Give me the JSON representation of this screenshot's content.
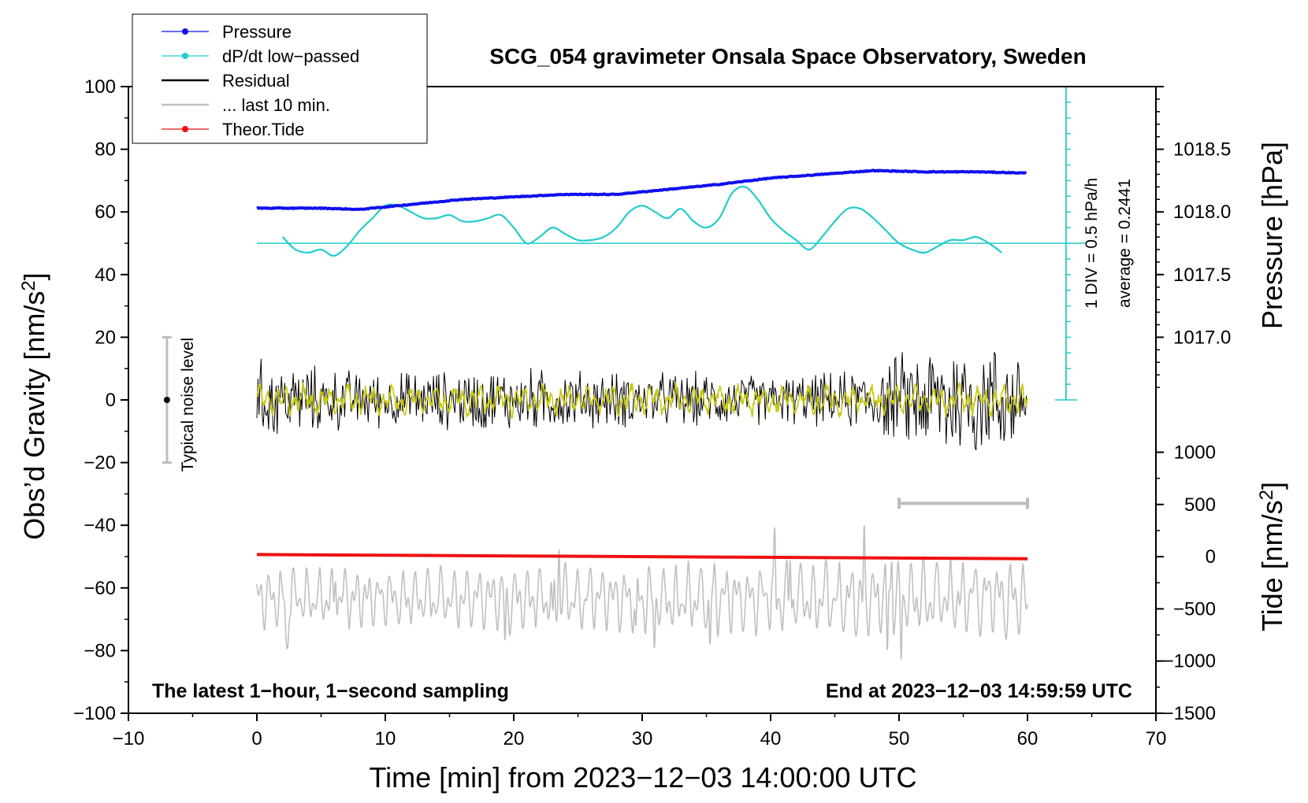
{
  "chart_data": {
    "type": "line",
    "title": "SCG_054 gravimeter Onsala Space Observatory, Sweden",
    "xlabel": "Time [min] from 2023−12−03 14:00:00 UTC",
    "ylabel_left_main": "Obs’d Gravity [nm/s",
    "ylabel_left_sup": "2",
    "ylabel_left_end": "]",
    "ylabel_right_top": "Pressure [hPa]",
    "ylabel_right_bottom_main": "Tide [nm/s",
    "ylabel_right_bottom_sup": "2",
    "ylabel_right_bottom_end": "]",
    "xlim": [
      -10,
      70
    ],
    "ylim": [
      -100,
      100
    ],
    "x_ticks": [
      -10,
      0,
      10,
      20,
      30,
      40,
      50,
      60,
      70
    ],
    "x_tick_labels": [
      "−10",
      "0",
      "10",
      "20",
      "30",
      "40",
      "50",
      "60",
      "70"
    ],
    "y_ticks": [
      -100,
      -80,
      -60,
      -40,
      -20,
      0,
      20,
      40,
      60,
      80,
      100
    ],
    "y_tick_labels": [
      "−100",
      "−80",
      "−60",
      "−40",
      "−20",
      "0",
      "20",
      "40",
      "60",
      "80",
      "100"
    ],
    "pressure_ticks": [
      1017.0,
      1017.5,
      1018.0,
      1018.5
    ],
    "pressure_tick_labels": [
      "1017.0",
      "1017.5",
      "1018.0",
      "1018.5"
    ],
    "pressure_axis_map": [
      [
        1017.0,
        20
      ],
      [
        1018.5,
        80
      ]
    ],
    "tide_ticks": [
      -1500,
      -1000,
      -500,
      0,
      500,
      1000
    ],
    "tide_tick_labels": [
      "−1500",
      "−1000",
      "−500",
      "0",
      "500",
      "1000"
    ],
    "tide_axis_map": [
      [
        -1500,
        -100
      ],
      [
        1000,
        -16.7
      ]
    ],
    "legend": [
      {
        "label": "Pressure",
        "color": "#1010ee",
        "style": "line-dot"
      },
      {
        "label": "dP/dt low−passed",
        "color": "#22cccc",
        "style": "line-dot"
      },
      {
        "label": "Residual",
        "color": "#000000",
        "style": "line"
      },
      {
        "label": "... last 10 min.",
        "color": "#c0c0c0",
        "style": "line"
      },
      {
        "label": "Theor.Tide",
        "color": "#ee1111",
        "style": "line-dot"
      }
    ],
    "legend_position": "top-left",
    "annotations": {
      "bottom_left": "The latest 1−hour, 1−second sampling",
      "bottom_right": "End at 2023−12−03 14:59:59 UTC",
      "noise_label": "Typical noise level",
      "div_label": "1 DIV = 0.5 hPa/h",
      "average_label": "average = 0.2441"
    },
    "noise_bar": {
      "x": -7,
      "center": 0,
      "low": -20,
      "high": 20
    },
    "ten_min_bar": {
      "x_start": 50,
      "x_end": 60,
      "y": -33
    },
    "dpdt_baseline": 50,
    "dpdt_scale": {
      "x": 63,
      "y_min": 0,
      "y_max": 100,
      "tick_step": 5
    },
    "series": [
      {
        "name": "Pressure",
        "color": "#1010ee",
        "unit": "hPa",
        "x": [
          0,
          5,
          8,
          10,
          13,
          16,
          20,
          24,
          28,
          32,
          36,
          40,
          44,
          48,
          52,
          56,
          60
        ],
        "values": [
          1018.03,
          1018.03,
          1018.02,
          1018.04,
          1018.07,
          1018.1,
          1018.12,
          1018.14,
          1018.14,
          1018.18,
          1018.22,
          1018.27,
          1018.3,
          1018.33,
          1018.32,
          1018.32,
          1018.31
        ]
      },
      {
        "name": "dP/dt low−passed",
        "color": "#22cccc",
        "unit": "nm/s2 axis",
        "x": [
          2,
          3,
          4,
          5,
          6,
          7,
          8,
          9,
          10,
          11,
          12,
          13,
          14,
          15,
          16,
          17,
          18,
          19,
          20,
          21,
          22,
          23,
          24,
          25,
          26,
          27,
          28,
          29,
          30,
          31,
          32,
          33,
          34,
          35,
          36,
          37,
          38,
          39,
          40,
          41,
          42,
          43,
          44,
          45,
          46,
          47,
          48,
          49,
          50,
          51,
          52,
          53,
          54,
          55,
          56,
          57,
          58
        ],
        "values": [
          52,
          48,
          47,
          48,
          46,
          49,
          54,
          58,
          62,
          62,
          60,
          58,
          58,
          59,
          57,
          57,
          58,
          59,
          55,
          50,
          52,
          55,
          53,
          51,
          51,
          52,
          55,
          60,
          62,
          60,
          58,
          61,
          57,
          55,
          58,
          66,
          68,
          64,
          58,
          54,
          51,
          48,
          52,
          57,
          61,
          61,
          58,
          54,
          50,
          48,
          47,
          49,
          51,
          51,
          52,
          50,
          47
        ]
      },
      {
        "name": "Residual",
        "color": "#000000",
        "generated_from": "noise envelope (nm/s2)",
        "x": [
          0,
          5,
          10,
          15,
          20,
          25,
          30,
          35,
          40,
          45,
          48,
          50,
          52,
          54,
          56,
          58,
          60
        ],
        "envelope": [
          15,
          12,
          10,
          11,
          12,
          11,
          10,
          10,
          9,
          10,
          12,
          17,
          20,
          24,
          22,
          20,
          18
        ]
      },
      {
        "name": "Residual smoothed",
        "color": "#c8c814",
        "x": [
          0,
          60
        ],
        "envelope": [
          4,
          4
        ]
      },
      {
        "name": "... last 10 min.",
        "color": "#c0c0c0",
        "unit": "nm/s2 (tide axis)",
        "generated_from": "oscillation around −400 with amplitude up to 600",
        "x": [
          0,
          60
        ],
        "center": [
          -400,
          -400
        ],
        "amplitude": [
          450,
          600
        ]
      },
      {
        "name": "Theor.Tide",
        "color": "#ee1111",
        "unit": "nm/s2 (tide axis)",
        "x": [
          0,
          60
        ],
        "values": [
          20,
          -20
        ]
      }
    ]
  }
}
